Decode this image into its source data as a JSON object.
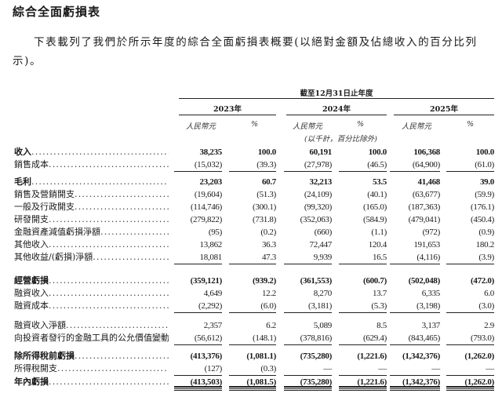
{
  "title": "綜合全面虧損表",
  "intro": "下表載列了我們於所示年度的綜合全面虧損表概要(以絕對金額及佔總收入的百分比列示)。",
  "table": {
    "period_header": "截至12月31日止年度",
    "years": [
      "2023年",
      "2024年",
      "2025年"
    ],
    "currency_label": "人民幣元",
    "percent_label": "%",
    "unit_note": "(以千計，百分比除外)",
    "rows": [
      {
        "label": "收入",
        "bold": true,
        "values": [
          "38,235",
          "100.0",
          "60,191",
          "100.0",
          "106,368",
          "100.0"
        ]
      },
      {
        "label": "銷售成本",
        "rule": "single",
        "values": [
          "(15,032)",
          "(39.3)",
          "(27,978)",
          "(46.5)",
          "(64,900)",
          "(61.0)"
        ]
      },
      {
        "label": "毛利",
        "bold": true,
        "values": [
          "23,203",
          "60.7",
          "32,213",
          "53.5",
          "41,468",
          "39.0"
        ]
      },
      {
        "label": "銷售及營銷開支",
        "values": [
          "(19,604)",
          "(51.3)",
          "(24,109)",
          "(40.1)",
          "(63,677)",
          "(59.9)"
        ]
      },
      {
        "label": "一般及行政開支",
        "values": [
          "(114,746)",
          "(300.1)",
          "(99,320)",
          "(165.0)",
          "(187,363)",
          "(176.1)"
        ]
      },
      {
        "label": "研發開支",
        "values": [
          "(279,822)",
          "(731.8)",
          "(352,063)",
          "(584.9)",
          "(479,041)",
          "(450.4)"
        ]
      },
      {
        "label": "金融資產減值虧損淨額",
        "values": [
          "(95)",
          "(0.2)",
          "(660)",
          "(1.1)",
          "(972)",
          "(0.9)"
        ]
      },
      {
        "label": "其他收入",
        "values": [
          "13,862",
          "36.3",
          "72,447",
          "120.4",
          "191,653",
          "180.2"
        ]
      },
      {
        "label": "其他收益/(虧損)淨額",
        "rule": "single",
        "values": [
          "18,081",
          "47.3",
          "9,939",
          "16.5",
          "(4,116)",
          "(3.9)"
        ]
      },
      {
        "label": "經營虧損",
        "bold": true,
        "values": [
          "(359,121)",
          "(939.2)",
          "(361,553)",
          "(600.7)",
          "(502,048)",
          "(472.0)"
        ]
      },
      {
        "label": "融資收入",
        "values": [
          "4,649",
          "12.2",
          "8,270",
          "13.7",
          "6,335",
          "6.0"
        ]
      },
      {
        "label": "融資成本",
        "rule": "single",
        "values": [
          "(2,292)",
          "(6.0)",
          "(3,181)",
          "(5.3)",
          "(3,198)",
          "(3.0)"
        ]
      },
      {
        "label": "融資收入淨額",
        "values": [
          "2,357",
          "6.2",
          "5,089",
          "8.5",
          "3,137",
          "2.9"
        ]
      },
      {
        "label": "向投資者發行的金融工具的公允價值變動",
        "rule": "single",
        "values": [
          "(56,612)",
          "(148.1)",
          "(378,816)",
          "(629.4)",
          "(843,465)",
          "(793.0)"
        ]
      },
      {
        "label": "除所得稅前虧損",
        "bold": true,
        "values": [
          "(413,376)",
          "(1,081.1)",
          "(735,280)",
          "(1,221.6)",
          "(1,342,376)",
          "(1,262.0)"
        ]
      },
      {
        "label": "所得稅開支",
        "rule": "single",
        "values": [
          "(127)",
          "(0.3)",
          "—",
          "—",
          "—",
          "—"
        ]
      },
      {
        "label": "年內虧損",
        "bold": true,
        "rule": "double",
        "values": [
          "(413,503)",
          "(1,081.5)",
          "(735,280)",
          "(1,221.6)",
          "(1,342,376)",
          "(1,262.0)"
        ]
      }
    ]
  }
}
